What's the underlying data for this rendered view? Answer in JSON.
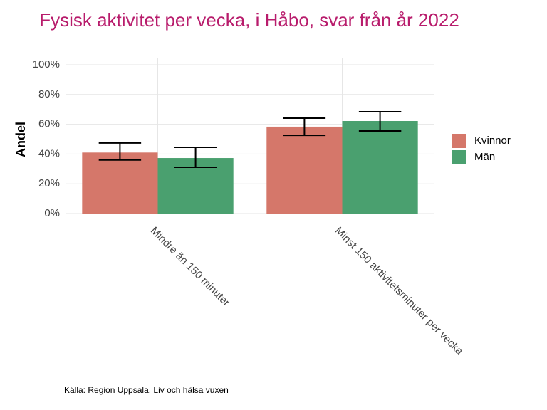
{
  "chart_data": {
    "type": "bar",
    "title": "Fysisk aktivitet per vecka, i Håbo, svar från år 2022",
    "y_label": "Andel",
    "caption": "Källa: Region Uppsala, Liv och hälsa vuxen",
    "categories": [
      "Mindre än 150 minuter",
      "Minst 150 aktivitetsminuter per vecka"
    ],
    "series": [
      {
        "name": "Kvinnor",
        "color": "#d5776a",
        "values": [
          41,
          58.4
        ],
        "lower": [
          36,
          52.6
        ],
        "upper": [
          47.4,
          64.1
        ]
      },
      {
        "name": "Män",
        "color": "#4aa06f",
        "values": [
          37.3,
          62.2
        ],
        "lower": [
          31.1,
          55.5
        ],
        "upper": [
          44.5,
          68.4
        ]
      }
    ],
    "ylim": [
      0,
      100
    ],
    "yticks": [
      {
        "value": 0,
        "label": "0%"
      },
      {
        "value": 20,
        "label": "20%"
      },
      {
        "value": 40,
        "label": "40%"
      },
      {
        "value": 60,
        "label": "60%"
      },
      {
        "value": 80,
        "label": "80%"
      },
      {
        "value": 100,
        "label": "100%"
      }
    ],
    "grid": true,
    "legend": "right"
  }
}
